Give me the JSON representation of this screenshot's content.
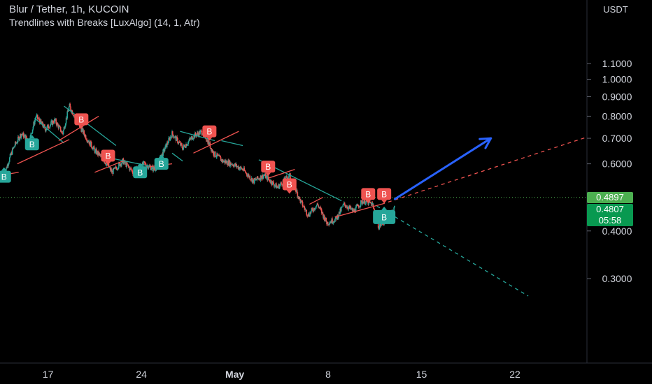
{
  "header": {
    "symbol_line": "Blur / Tether, 1h, KUCOIN",
    "indicator_line": "Trendlines with Breaks [LuxAlgo] (14, 1, Atr)"
  },
  "colors": {
    "background": "#000000",
    "bull_candle": "#26a69a",
    "bear_candle": "#ef5350",
    "upper_trendline": "#26a69a",
    "lower_trendline": "#ef5350",
    "drawn_arrow": "#2962ff",
    "current_price_tag": "#089950",
    "prev_price_tag": "#4caf50"
  },
  "chart_data": {
    "type": "candlestick",
    "title": "Blur / Tether, 1h, KUCOIN",
    "indicator": "Trendlines with Breaks [LuxAlgo] (14, 1, Atr)",
    "y_unit": "USDT",
    "y_scale": "log",
    "y_ticks": [
      0.3,
      0.4,
      0.6,
      0.7,
      0.8,
      0.9,
      1.0,
      1.1
    ],
    "y_tick_labels": [
      "0.3000",
      "0.4000",
      "0.6000",
      "0.7000",
      "0.8000",
      "0.9000",
      "1.0000",
      "1.1000"
    ],
    "x_tick_labels": [
      "17",
      "24",
      "May",
      "8",
      "15",
      "22"
    ],
    "x_ticks_day_index": [
      0,
      7,
      14,
      21,
      28,
      35
    ],
    "x_range_days": [
      -3.6,
      40.4
    ],
    "price_path": [
      {
        "d": -3.3,
        "p": 0.56
      },
      {
        "d": -2.6,
        "p": 0.66
      },
      {
        "d": -2.0,
        "p": 0.72
      },
      {
        "d": -1.4,
        "p": 0.69
      },
      {
        "d": -0.9,
        "p": 0.8
      },
      {
        "d": -0.2,
        "p": 0.74
      },
      {
        "d": 0.5,
        "p": 0.78
      },
      {
        "d": 1.1,
        "p": 0.72
      },
      {
        "d": 1.6,
        "p": 0.85
      },
      {
        "d": 2.3,
        "p": 0.76
      },
      {
        "d": 2.9,
        "p": 0.7
      },
      {
        "d": 3.5,
        "p": 0.65
      },
      {
        "d": 4.1,
        "p": 0.62
      },
      {
        "d": 4.8,
        "p": 0.57
      },
      {
        "d": 5.6,
        "p": 0.61
      },
      {
        "d": 6.4,
        "p": 0.57
      },
      {
        "d": 7.2,
        "p": 0.6
      },
      {
        "d": 8.0,
        "p": 0.58
      },
      {
        "d": 8.6,
        "p": 0.64
      },
      {
        "d": 9.3,
        "p": 0.72
      },
      {
        "d": 10.1,
        "p": 0.66
      },
      {
        "d": 10.9,
        "p": 0.71
      },
      {
        "d": 11.6,
        "p": 0.73
      },
      {
        "d": 12.4,
        "p": 0.64
      },
      {
        "d": 13.1,
        "p": 0.61
      },
      {
        "d": 13.8,
        "p": 0.6
      },
      {
        "d": 14.6,
        "p": 0.58
      },
      {
        "d": 15.4,
        "p": 0.54
      },
      {
        "d": 16.2,
        "p": 0.56
      },
      {
        "d": 17.2,
        "p": 0.52
      },
      {
        "d": 18.1,
        "p": 0.56
      },
      {
        "d": 18.9,
        "p": 0.48
      },
      {
        "d": 19.5,
        "p": 0.44
      },
      {
        "d": 20.2,
        "p": 0.47
      },
      {
        "d": 20.9,
        "p": 0.42
      },
      {
        "d": 21.6,
        "p": 0.43
      },
      {
        "d": 22.2,
        "p": 0.47
      },
      {
        "d": 22.9,
        "p": 0.45
      },
      {
        "d": 23.6,
        "p": 0.48
      },
      {
        "d": 24.3,
        "p": 0.47
      },
      {
        "d": 24.8,
        "p": 0.41
      },
      {
        "d": 25.4,
        "p": 0.43
      },
      {
        "d": 26.0,
        "p": 0.46
      }
    ],
    "upper_trendlines": [
      {
        "from": [
          -1.0,
          0.79
        ],
        "to": [
          1.2,
          0.68
        ]
      },
      {
        "from": [
          1.2,
          0.85
        ],
        "to": [
          5.1,
          0.67
        ]
      },
      {
        "from": [
          4.8,
          0.62
        ],
        "to": [
          7.8,
          0.59
        ]
      },
      {
        "from": [
          9.3,
          0.64
        ],
        "to": [
          10.1,
          0.61
        ]
      },
      {
        "from": [
          9.9,
          0.73
        ],
        "to": [
          12.5,
          0.69
        ]
      },
      {
        "from": [
          13.0,
          0.69
        ],
        "to": [
          14.6,
          0.67
        ]
      },
      {
        "from": [
          15.8,
          0.615
        ],
        "to": [
          22.0,
          0.48
        ]
      },
      {
        "from": [
          24.2,
          0.475
        ],
        "to": [
          36.0,
          0.27
        ]
      }
    ],
    "lower_trendlines": [
      {
        "from": [
          -3.5,
          0.56
        ],
        "to": [
          -2.2,
          0.57
        ]
      },
      {
        "from": [
          -2.3,
          0.6
        ],
        "to": [
          1.6,
          0.695
        ]
      },
      {
        "from": [
          0.8,
          0.69
        ],
        "to": [
          3.8,
          0.8
        ]
      },
      {
        "from": [
          3.5,
          0.57
        ],
        "to": [
          5.6,
          0.61
        ]
      },
      {
        "from": [
          7.6,
          0.59
        ],
        "to": [
          9.3,
          0.6
        ]
      },
      {
        "from": [
          10.9,
          0.64
        ],
        "to": [
          14.3,
          0.73
        ]
      },
      {
        "from": [
          16.5,
          0.55
        ],
        "to": [
          18.5,
          0.58
        ]
      },
      {
        "from": [
          19.6,
          0.47
        ],
        "to": [
          20.6,
          0.49
        ]
      },
      {
        "from": [
          21.5,
          0.435
        ],
        "to": [
          25.0,
          0.47
        ]
      },
      {
        "from": [
          25.0,
          0.47
        ],
        "to": [
          40.4,
          0.705
        ]
      }
    ],
    "break_labels": [
      {
        "d": -3.3,
        "p": 0.555,
        "label": "B",
        "kind": "bull"
      },
      {
        "d": -1.2,
        "p": 0.675,
        "label": "B",
        "kind": "bull"
      },
      {
        "d": 2.5,
        "p": 0.785,
        "label": "B",
        "kind": "bear"
      },
      {
        "d": 4.5,
        "p": 0.63,
        "label": "B",
        "kind": "bear"
      },
      {
        "d": 6.9,
        "p": 0.57,
        "label": "B",
        "kind": "bull"
      },
      {
        "d": 8.5,
        "p": 0.6,
        "label": "B",
        "kind": "bull"
      },
      {
        "d": 12.1,
        "p": 0.73,
        "label": "B",
        "kind": "bear"
      },
      {
        "d": 16.5,
        "p": 0.59,
        "label": "B",
        "kind": "bear"
      },
      {
        "d": 18.1,
        "p": 0.53,
        "label": "B",
        "kind": "bear"
      },
      {
        "d": 24.0,
        "p": 0.5,
        "label": "B",
        "kind": "bear"
      },
      {
        "d": 25.2,
        "p": 0.5,
        "label": "B",
        "kind": "bear"
      },
      {
        "d": 25.2,
        "p": 0.435,
        "label": "B",
        "kind": "bull"
      }
    ],
    "projection_arrow": {
      "from": [
        26.0,
        0.485
      ],
      "to": [
        33.2,
        0.7
      ]
    },
    "prev_price_line": 0.4897,
    "current_price": 0.4807,
    "current_price_label": "0.4807",
    "prev_price_label": "0.4897",
    "countdown": "05:58"
  }
}
